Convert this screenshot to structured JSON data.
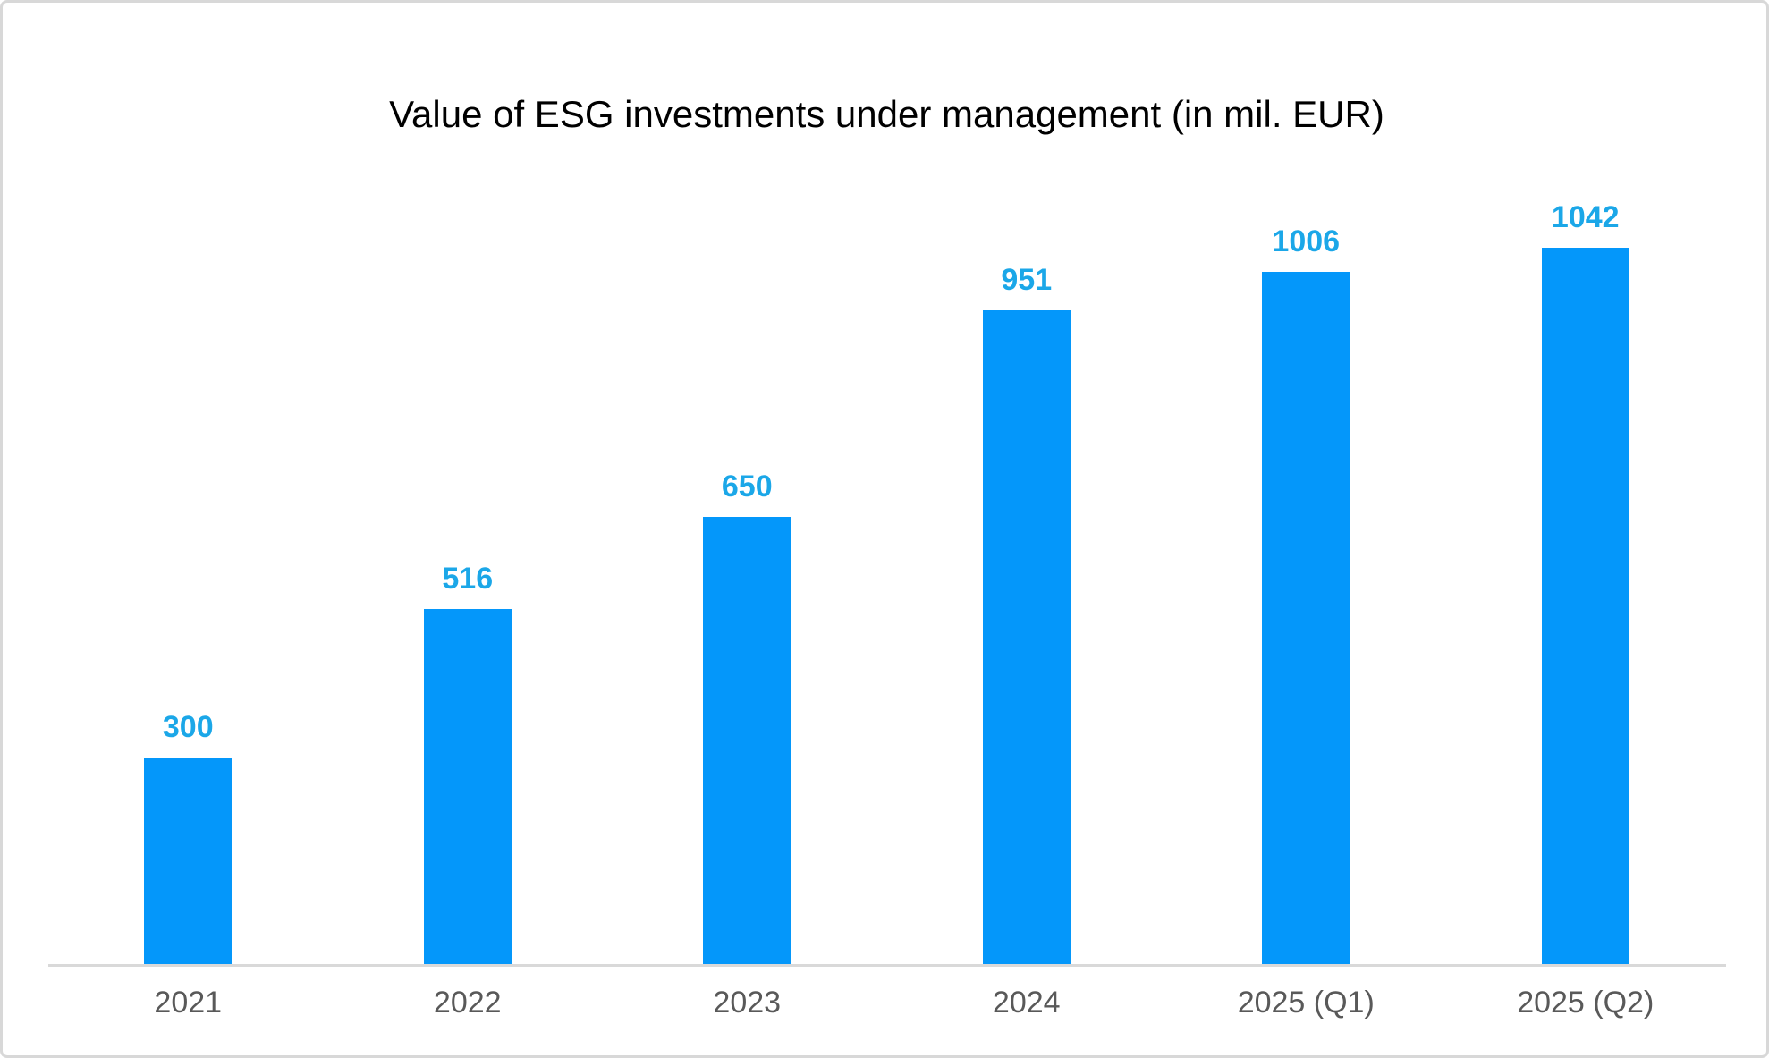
{
  "chart_data": {
    "type": "bar",
    "title": "Value of ESG investments under management (in mil. EUR)",
    "categories": [
      "2021",
      "2022",
      "2023",
      "2024",
      "2025 (Q1)",
      "2025 (Q2)"
    ],
    "values": [
      300,
      516,
      650,
      951,
      1006,
      1042
    ],
    "data_labels_shown": true,
    "xlabel": "",
    "ylabel": "",
    "ylim": [
      0,
      1200
    ],
    "grid": false,
    "legend": false,
    "colors": {
      "bar": "#0497fa",
      "value_label": "#1ba7e8",
      "axis_line": "#d9d9d9",
      "axis_label": "#595959",
      "title": "#000000",
      "frame_border": "#d8d8d8"
    }
  }
}
